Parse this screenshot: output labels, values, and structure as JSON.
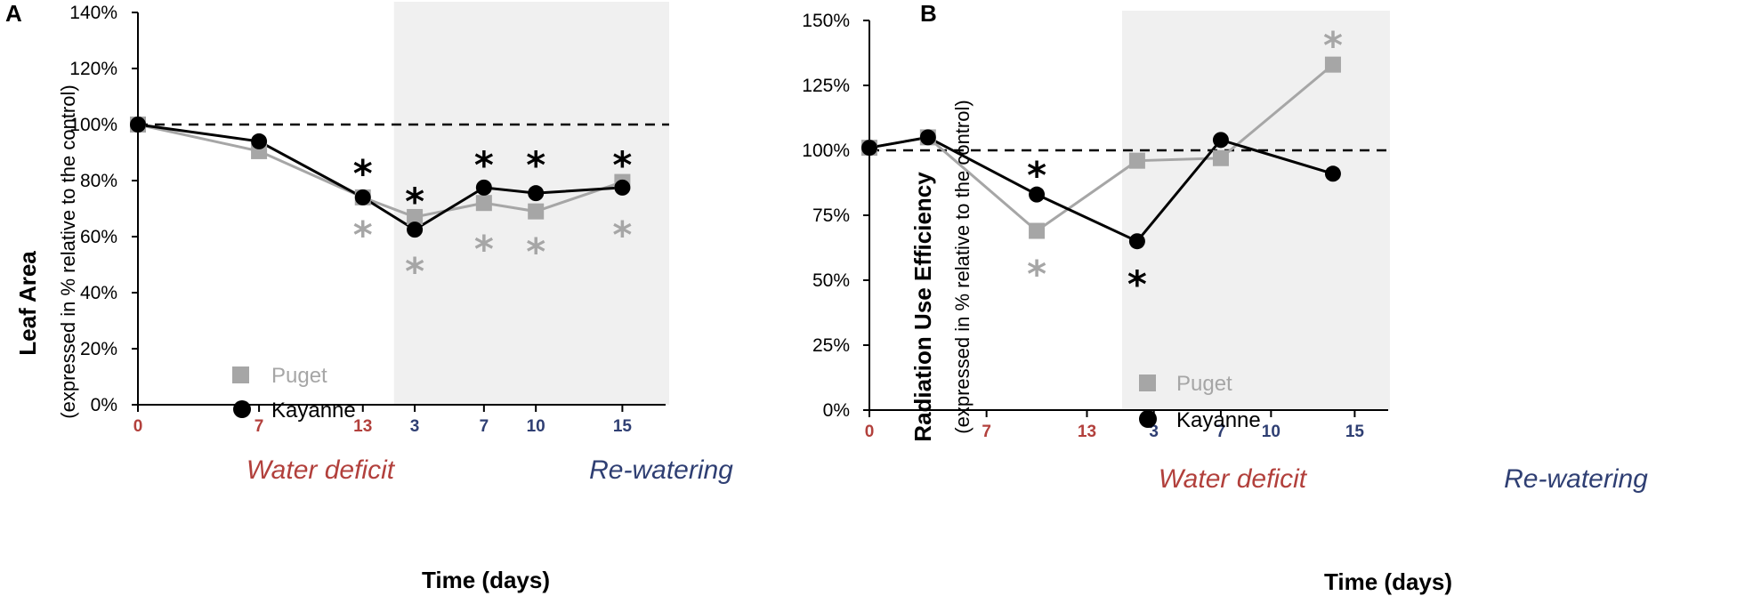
{
  "colors": {
    "puget": "#a6a6a6",
    "kayanne": "#000000",
    "water_deficit": "#b2403c",
    "rewatering": "#2f3f73",
    "shade": "#f0f0f0"
  },
  "chart_data": [
    {
      "type": "line",
      "panel": "A",
      "xlabel": "Time (days)",
      "ylabel": "Leaf Area",
      "ylabel_sub": "(expressed in % relative to the control)",
      "ylim": [
        0,
        140
      ],
      "yticks": [
        "0%",
        "20%",
        "40%",
        "60%",
        "80%",
        "100%",
        "120%",
        "140%"
      ],
      "reference_line": 100,
      "x_ticks": [
        {
          "label": "0",
          "phase": "water_deficit",
          "pos": 0
        },
        {
          "label": "7",
          "phase": "water_deficit",
          "pos": 7
        },
        {
          "label": "13",
          "phase": "water_deficit",
          "pos": 13
        },
        {
          "label": "3",
          "phase": "rewatering",
          "pos": 16
        },
        {
          "label": "7",
          "phase": "rewatering",
          "pos": 20
        },
        {
          "label": "10",
          "phase": "rewatering",
          "pos": 23
        },
        {
          "label": "15",
          "phase": "rewatering",
          "pos": 28
        }
      ],
      "xlim": [
        0,
        30.5
      ],
      "shade_start": 14.8,
      "phases": {
        "water_deficit": "Water deficit",
        "rewatering": "Re-watering"
      },
      "series": [
        {
          "name": "Puget",
          "marker": "square",
          "x": [
            0,
            7,
            13,
            16,
            20,
            23,
            28
          ],
          "values": [
            100,
            90.5,
            74,
            67,
            72,
            69,
            79.5
          ]
        },
        {
          "name": "Kayanne",
          "marker": "circle",
          "x": [
            0,
            7,
            13,
            16,
            20,
            23,
            28
          ],
          "values": [
            100,
            94,
            74,
            62.5,
            77.5,
            75.5,
            77.5
          ]
        }
      ],
      "significance": [
        {
          "series": "Kayanne",
          "x": 13,
          "y": 85,
          "label": "*"
        },
        {
          "series": "Puget",
          "x": 13,
          "y": 63,
          "label": "*"
        },
        {
          "series": "Kayanne",
          "x": 16,
          "y": 75,
          "label": "*"
        },
        {
          "series": "Puget",
          "x": 16,
          "y": 50,
          "label": "*"
        },
        {
          "series": "Kayanne",
          "x": 20,
          "y": 88,
          "label": "*"
        },
        {
          "series": "Puget",
          "x": 20,
          "y": 58,
          "label": "*"
        },
        {
          "series": "Kayanne",
          "x": 23,
          "y": 88,
          "label": "*"
        },
        {
          "series": "Puget",
          "x": 23,
          "y": 57,
          "label": "*"
        },
        {
          "series": "Kayanne",
          "x": 28,
          "y": 88,
          "label": "*"
        },
        {
          "series": "Puget",
          "x": 28,
          "y": 63,
          "label": "*"
        }
      ]
    },
    {
      "type": "line",
      "panel": "B",
      "xlabel": "Time (days)",
      "ylabel": "Radiation Use Efficiency",
      "ylabel_sub": "(expressed in % relative to the control)",
      "ylim": [
        0,
        150
      ],
      "yticks": [
        "0%",
        "25%",
        "50%",
        "75%",
        "100%",
        "125%",
        "150%"
      ],
      "reference_line": 100,
      "x_ticks": [
        {
          "label": "0",
          "phase": "water_deficit",
          "pos": 0
        },
        {
          "label": "7",
          "phase": "water_deficit",
          "pos": 7
        },
        {
          "label": "13",
          "phase": "water_deficit",
          "pos": 13
        },
        {
          "label": "3",
          "phase": "rewatering",
          "pos": 17
        },
        {
          "label": "7",
          "phase": "rewatering",
          "pos": 21
        },
        {
          "label": "10",
          "phase": "rewatering",
          "pos": 24
        },
        {
          "label": "15",
          "phase": "rewatering",
          "pos": 29
        }
      ],
      "xlim": [
        0,
        31
      ],
      "shade_start": 15.1,
      "phases": {
        "water_deficit": "Water deficit",
        "rewatering": "Re-watering"
      },
      "series": [
        {
          "name": "Puget",
          "marker": "square",
          "x": [
            0,
            3.5,
            10,
            16,
            21,
            27.7
          ],
          "values": [
            101,
            105,
            69,
            96,
            97,
            133
          ]
        },
        {
          "name": "Kayanne",
          "marker": "circle",
          "x": [
            0,
            3.5,
            10,
            16,
            21,
            27.7
          ],
          "values": [
            101,
            105,
            83,
            65,
            104,
            91
          ]
        }
      ],
      "significance": [
        {
          "series": "Kayanne",
          "x": 10,
          "y": 93,
          "label": "*"
        },
        {
          "series": "Puget",
          "x": 10,
          "y": 55,
          "label": "*"
        },
        {
          "series": "Kayanne",
          "x": 16,
          "y": 51,
          "label": "*"
        },
        {
          "series": "Puget",
          "x": 27.7,
          "y": 143,
          "label": "*"
        }
      ]
    }
  ]
}
